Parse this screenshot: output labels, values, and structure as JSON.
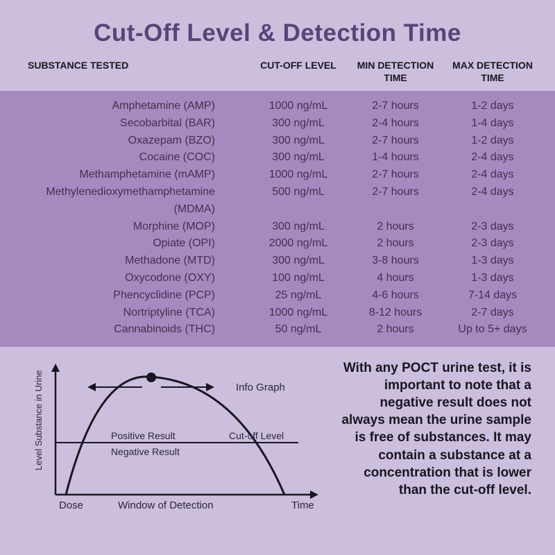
{
  "title": "Cut-Off Level & Detection Time",
  "headers": {
    "substance": "SUBSTANCE TESTED",
    "cutoff": "CUT-OFF LEVEL",
    "min": "MIN DETECTION TIME",
    "max": "MAX DETECTION TIME"
  },
  "rows": [
    {
      "substance": "Amphetamine (AMP)",
      "cutoff": "1000 ng/mL",
      "min": "2-7 hours",
      "max": "1-2 days"
    },
    {
      "substance": "Secobarbital (BAR)",
      "cutoff": "300 ng/mL",
      "min": "2-4 hours",
      "max": "1-4 days"
    },
    {
      "substance": "Oxazepam (BZO)",
      "cutoff": "300 ng/mL",
      "min": "2-7 hours",
      "max": "1-2 days"
    },
    {
      "substance": "Cocaine (COC)",
      "cutoff": "300 ng/mL",
      "min": "1-4 hours",
      "max": "2-4 days"
    },
    {
      "substance": "Methamphetamine (mAMP)",
      "cutoff": "1000 ng/mL",
      "min": "2-7 hours",
      "max": "2-4 days"
    },
    {
      "substance": "Methylenedioxymethamphetamine (MDMA)",
      "cutoff": "500 ng/mL",
      "min": "2-7 hours",
      "max": "2-4 days"
    },
    {
      "substance": "Morphine (MOP)",
      "cutoff": "300 ng/mL",
      "min": "2 hours",
      "max": "2-3 days"
    },
    {
      "substance": "Opiate (OPI)",
      "cutoff": "2000 ng/mL",
      "min": "2 hours",
      "max": "2-3 days"
    },
    {
      "substance": "Methadone (MTD)",
      "cutoff": "300 ng/mL",
      "min": "3-8 hours",
      "max": "1-3 days"
    },
    {
      "substance": "Oxycodone (OXY)",
      "cutoff": "100 ng/mL",
      "min": "4 hours",
      "max": "1-3 days"
    },
    {
      "substance": "Phencyclidine (PCP)",
      "cutoff": "25 ng/mL",
      "min": "4-6 hours",
      "max": "7-14 days"
    },
    {
      "substance": "Nortriptyline (TCA)",
      "cutoff": "1000 ng/mL",
      "min": "8-12 hours",
      "max": "2-7 days"
    },
    {
      "substance": "Cannabinoids (THC)",
      "cutoff": "50 ng/mL",
      "min": "2 hours",
      "max": "Up to 5+ days"
    }
  ],
  "graph": {
    "y_label": "Level Substance in Urine",
    "x_dose": "Dose",
    "x_window": "Window of Detection",
    "x_time": "Time",
    "positive": "Positive Result",
    "negative": "Negative Result",
    "cutoff": "Cut-off Level",
    "info": "Info Graph",
    "stroke": "#1a1420",
    "stroke_width": 2.5,
    "axis_width": 2.5
  },
  "note": "With any POCT urine test, it is important to note that a negative result does not always mean the urine sample is free of substances. It may contain a substance at a concentration that is lower than the cut-off level.",
  "colors": {
    "page_bg": "#cbbfdd",
    "band_bg": "#a68abf",
    "title": "#5a4378",
    "header_text": "#1a1420",
    "body_text": "#403050"
  }
}
